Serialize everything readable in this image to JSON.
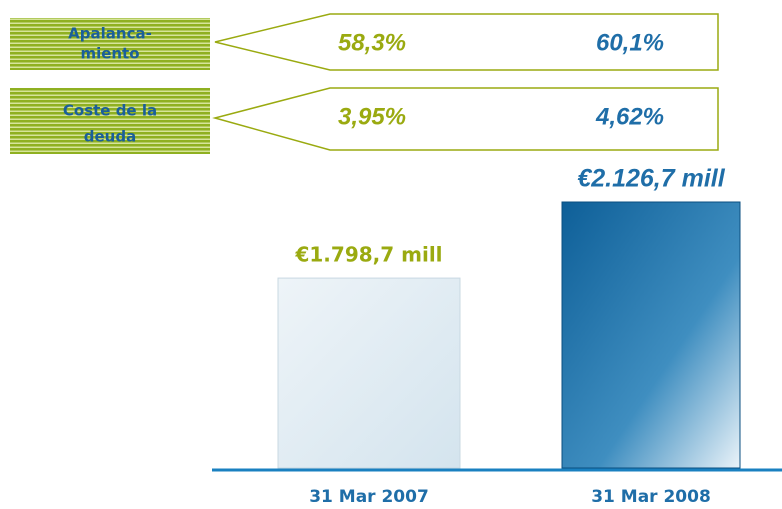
{
  "indicators": [
    {
      "label": [
        "Apalanca-",
        "miento"
      ],
      "values": [
        "58,3%",
        "60,1%"
      ]
    },
    {
      "label": [
        "Coste de la",
        "deuda"
      ],
      "values": [
        "3,95%",
        "4,62%"
      ]
    }
  ],
  "indicator_colors": [
    "#9aaa10",
    "#1f6ea8"
  ],
  "chart_data": {
    "type": "bar",
    "categories": [
      "31 Mar 2007",
      "31 Mar 2008"
    ],
    "values": [
      1798.7,
      2126.7
    ],
    "value_labels": [
      "€1.798,7 mill",
      "€2.126,7 mill"
    ],
    "colors": [
      "#d4e4ee",
      "#0e5f98"
    ],
    "ylim": [
      980,
      2200
    ]
  }
}
